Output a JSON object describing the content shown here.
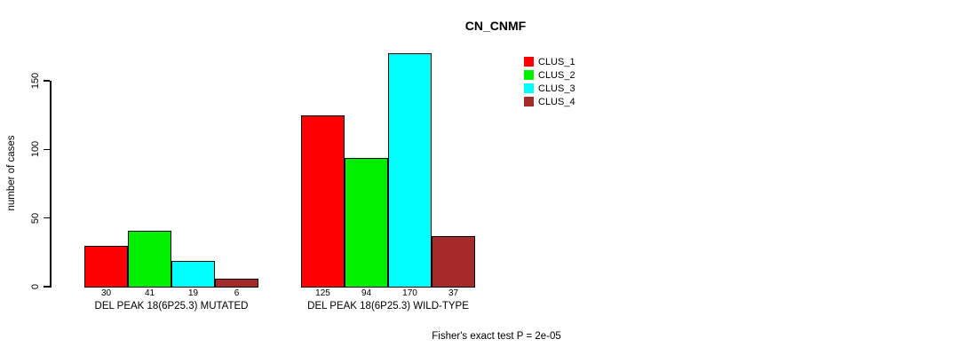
{
  "chart_data": {
    "type": "bar",
    "title": "CN_CNMF",
    "ylabel": "number of cases",
    "xlabel": "",
    "yticks": [
      0,
      50,
      100,
      150
    ],
    "ylim": [
      0,
      175
    ],
    "grid": false,
    "legend_position": "top-right",
    "categories": [
      "DEL PEAK 18(6P25.3) MUTATED",
      "DEL PEAK 18(6P25.3) WILD-TYPE"
    ],
    "series": [
      {
        "name": "CLUS_1",
        "color": "#FF0000",
        "values": [
          30,
          125
        ]
      },
      {
        "name": "CLUS_2",
        "color": "#00EE00",
        "values": [
          41,
          94
        ]
      },
      {
        "name": "CLUS_3",
        "color": "#00FFFF",
        "values": [
          19,
          170
        ]
      },
      {
        "name": "CLUS_4",
        "color": "#A52A2A",
        "values": [
          6,
          37
        ]
      }
    ],
    "bar_value_labels_shown": true,
    "footnote": "Fisher's exact test P = 2e-05"
  }
}
